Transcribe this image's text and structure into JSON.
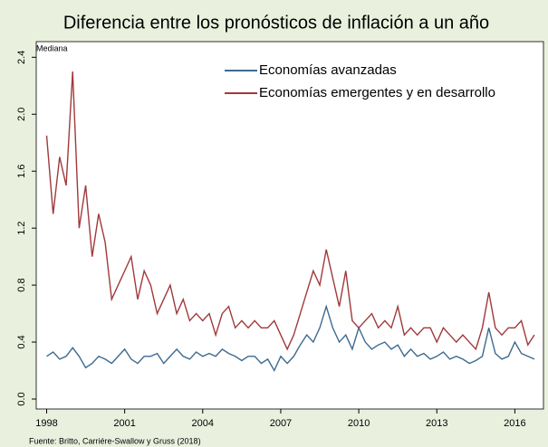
{
  "chart_data": {
    "type": "line",
    "title": "Diferencia entre los pronósticos de inflación a un año",
    "y_label": "Mediana",
    "source": "Fuente: Britto, Carriére-Swallow y Gruss (2018)",
    "legend": "upper right",
    "grid": false,
    "xlim": [
      1997.6,
      2017.1
    ],
    "xticks": [
      1998,
      2001,
      2004,
      2007,
      2010,
      2013,
      2016
    ],
    "ylim": [
      -0.07,
      2.51
    ],
    "yticks": [
      {
        "value": 0,
        "label": "0.0"
      },
      0.4,
      0.8,
      1.2,
      1.6,
      {
        "value": 2,
        "label": "2.0"
      },
      2.4
    ],
    "x": [
      1998,
      1998.25,
      1998.5,
      1998.75,
      1999,
      1999.25,
      1999.5,
      1999.75,
      2000,
      2000.25,
      2000.5,
      2000.75,
      2001,
      2001.25,
      2001.5,
      2001.75,
      2002,
      2002.25,
      2002.5,
      2002.75,
      2003,
      2003.25,
      2003.5,
      2003.75,
      2004,
      2004.25,
      2004.5,
      2004.75,
      2005,
      2005.25,
      2005.5,
      2005.75,
      2006,
      2006.25,
      2006.5,
      2006.75,
      2007,
      2007.25,
      2007.5,
      2007.75,
      2008,
      2008.25,
      2008.5,
      2008.75,
      2009,
      2009.25,
      2009.5,
      2009.75,
      2010,
      2010.25,
      2010.5,
      2010.75,
      2011,
      2011.25,
      2011.5,
      2011.75,
      2012,
      2012.25,
      2012.5,
      2012.75,
      2013,
      2013.25,
      2013.5,
      2013.75,
      2014,
      2014.25,
      2014.5,
      2014.75,
      2015,
      2015.25,
      2015.5,
      2015.75,
      2016,
      2016.25,
      2016.5,
      2016.75
    ],
    "series": [
      {
        "name": "Economías avanzadas",
        "color": "#3d6a8f",
        "values": [
          0.3,
          0.33,
          0.28,
          0.3,
          0.36,
          0.3,
          0.22,
          0.25,
          0.3,
          0.28,
          0.25,
          0.3,
          0.35,
          0.28,
          0.25,
          0.3,
          0.3,
          0.32,
          0.25,
          0.3,
          0.35,
          0.3,
          0.28,
          0.33,
          0.3,
          0.32,
          0.3,
          0.35,
          0.32,
          0.3,
          0.27,
          0.3,
          0.3,
          0.25,
          0.28,
          0.2,
          0.3,
          0.25,
          0.3,
          0.38,
          0.45,
          0.4,
          0.5,
          0.65,
          0.5,
          0.4,
          0.45,
          0.35,
          0.5,
          0.4,
          0.35,
          0.38,
          0.4,
          0.35,
          0.38,
          0.3,
          0.35,
          0.3,
          0.32,
          0.28,
          0.3,
          0.33,
          0.28,
          0.3,
          0.28,
          0.25,
          0.27,
          0.3,
          0.5,
          0.32,
          0.28,
          0.3,
          0.4,
          0.32,
          0.3,
          0.28
        ]
      },
      {
        "name": "Economías emergentes y en desarrollo",
        "color": "#a0393b",
        "values": [
          1.85,
          1.3,
          1.7,
          1.5,
          2.3,
          1.2,
          1.5,
          1.0,
          1.3,
          1.1,
          0.7,
          0.8,
          0.9,
          1.0,
          0.7,
          0.9,
          0.8,
          0.6,
          0.7,
          0.8,
          0.6,
          0.7,
          0.55,
          0.6,
          0.55,
          0.6,
          0.45,
          0.6,
          0.65,
          0.5,
          0.55,
          0.5,
          0.55,
          0.5,
          0.5,
          0.55,
          0.45,
          0.35,
          0.45,
          0.6,
          0.75,
          0.9,
          0.8,
          1.05,
          0.85,
          0.65,
          0.9,
          0.55,
          0.5,
          0.55,
          0.6,
          0.5,
          0.55,
          0.5,
          0.65,
          0.45,
          0.5,
          0.45,
          0.5,
          0.5,
          0.4,
          0.5,
          0.45,
          0.4,
          0.45,
          0.4,
          0.35,
          0.5,
          0.75,
          0.5,
          0.45,
          0.5,
          0.5,
          0.55,
          0.38,
          0.45
        ]
      }
    ]
  }
}
